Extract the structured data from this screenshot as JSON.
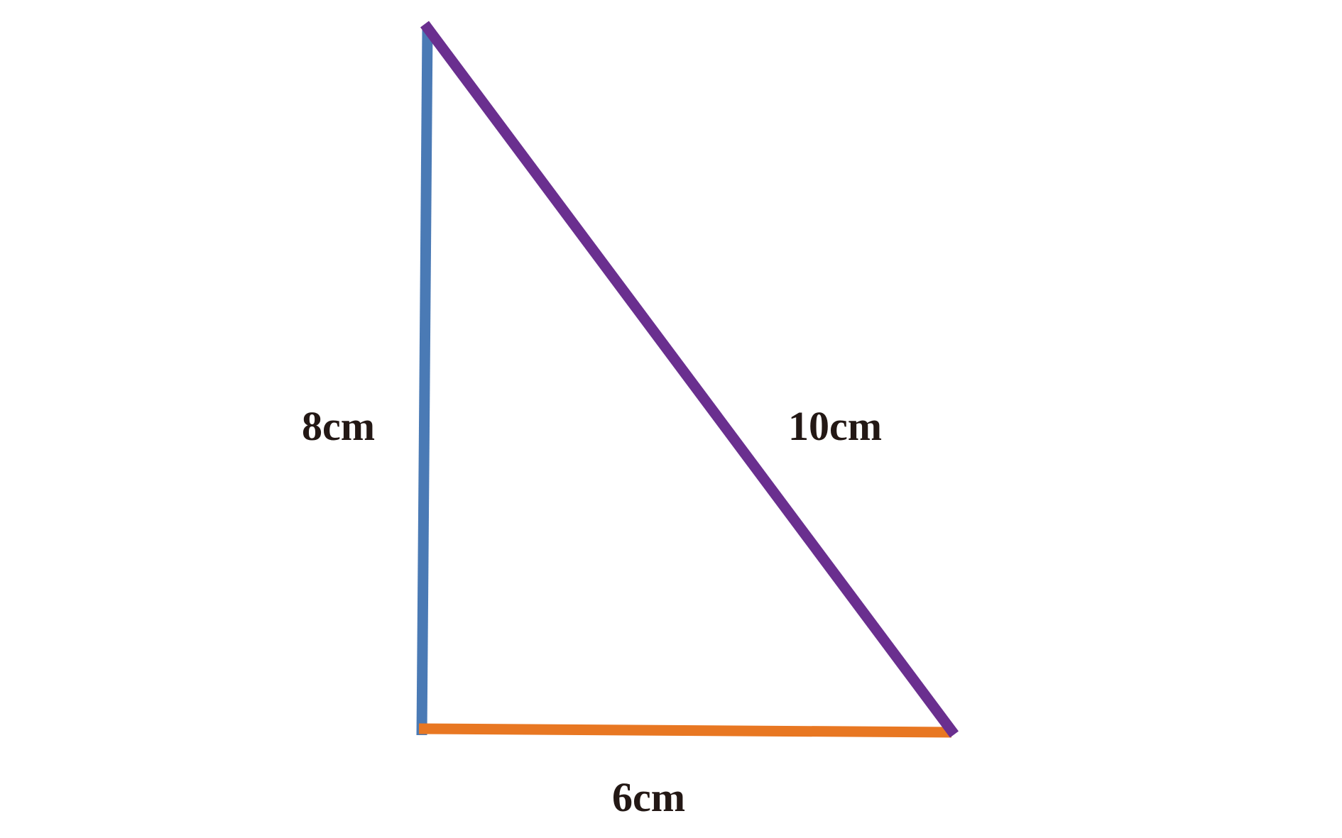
{
  "diagram": {
    "type": "right-triangle",
    "sides": {
      "vertical": {
        "label": "8cm",
        "color": "#4a7ab5"
      },
      "horizontal": {
        "label": "6cm",
        "color": "#e87722"
      },
      "hypotenuse": {
        "label": "10cm",
        "color": "#6a2f8f"
      }
    },
    "label_color": "#231815"
  }
}
